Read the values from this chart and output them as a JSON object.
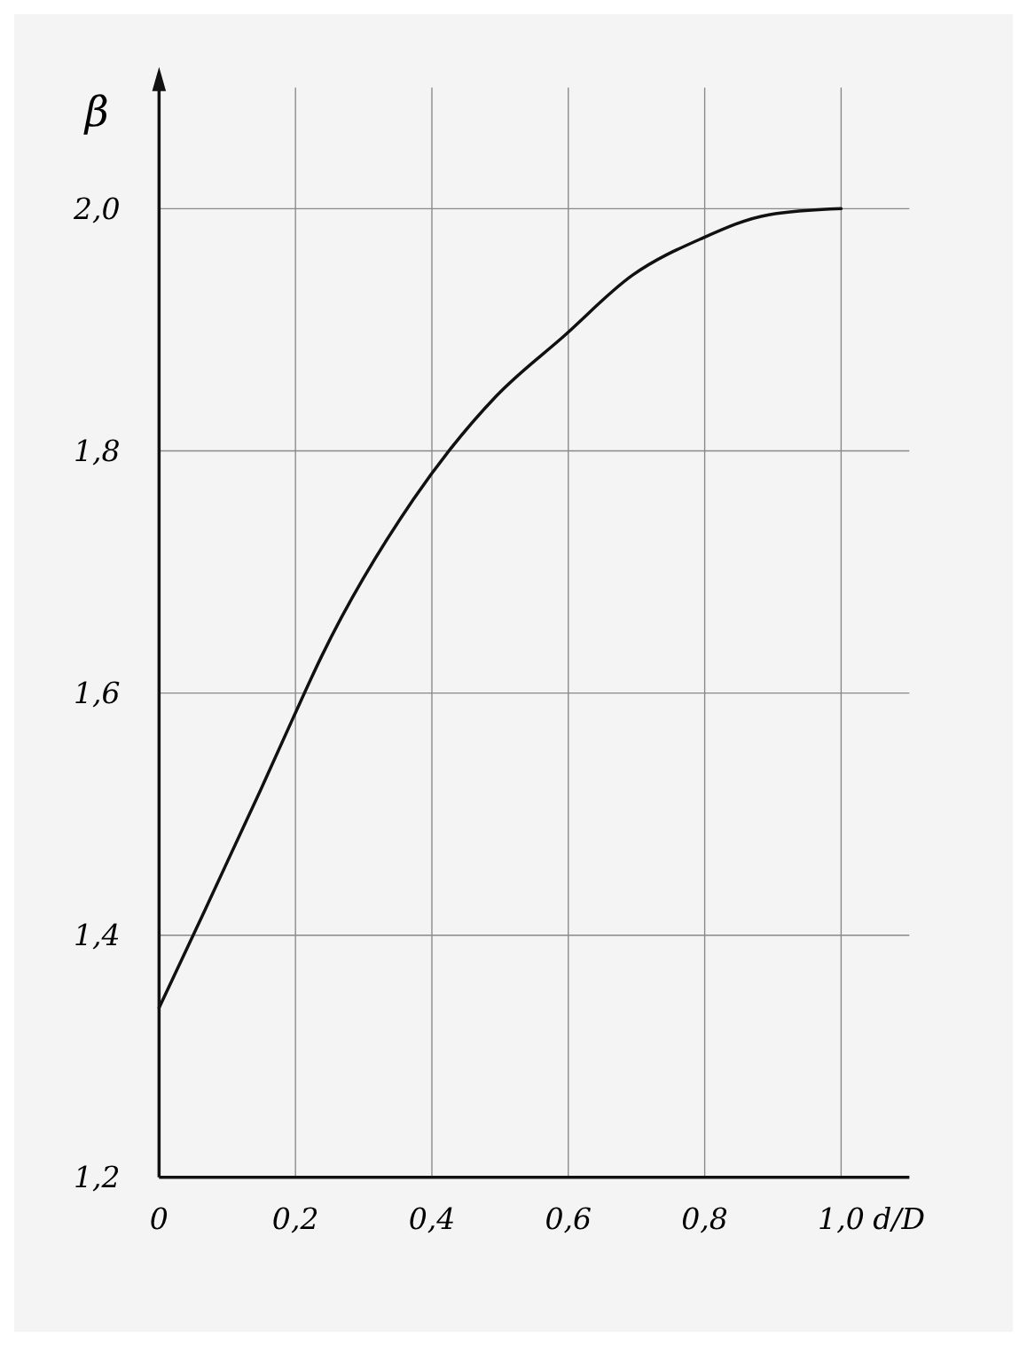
{
  "chart_data": {
    "type": "line",
    "xlabel": "d/D",
    "ylabel": "β",
    "x": [
      0,
      0.05,
      0.149,
      0.197,
      0.238,
      0.373,
      0.494,
      0.594,
      0.694,
      0.794,
      0.894,
      1.0
    ],
    "series": [
      {
        "color": "#111111",
        "values": [
          1.34,
          1.4,
          1.52,
          1.58,
          1.63,
          1.76,
          1.845,
          1.895,
          1.945,
          1.975,
          1.995,
          2.0
        ]
      }
    ],
    "xlim": [
      0,
      1.1
    ],
    "ylim": [
      1.2,
      2.1
    ],
    "xticks": [
      0,
      {
        "value": 0.2,
        "label": "0,2"
      },
      {
        "value": 0.4,
        "label": "0,4"
      },
      {
        "value": 0.6,
        "label": "0,6"
      },
      {
        "value": 0.8,
        "label": "0,8"
      },
      {
        "value": 1.0,
        "label": "1,0"
      }
    ],
    "yticks": [
      {
        "value": 1.2,
        "label": "1,2"
      },
      {
        "value": 1.4,
        "label": "1,4"
      },
      {
        "value": 1.6,
        "label": "1,6"
      },
      {
        "value": 1.8,
        "label": "1,8"
      },
      {
        "value": 2.0,
        "label": "2,0"
      }
    ],
    "grid": true,
    "marker": "none",
    "line_style": "solid"
  }
}
